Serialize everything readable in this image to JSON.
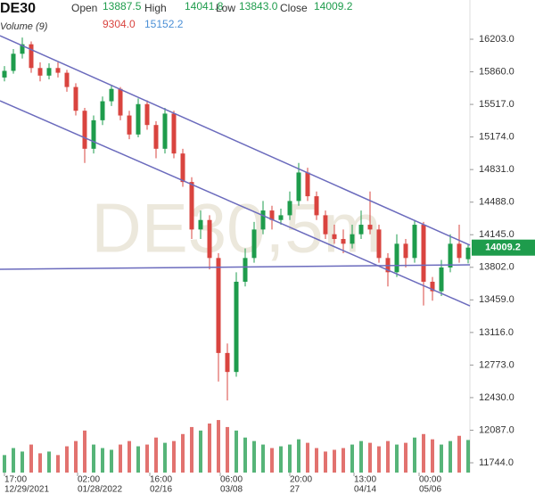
{
  "chart_data": {
    "type": "candlestick",
    "symbol": "DE30",
    "watermark": "DE30,5m",
    "stats": {
      "labels": [
        "Open",
        "High",
        "Low",
        "Close"
      ],
      "values": [
        13887.5,
        14041.8,
        13843,
        14009.2
      ],
      "value_labels": [
        "13887.5",
        "14041.8",
        "13843.0",
        "14009.2"
      ],
      "color": "#1e9c4c"
    },
    "volume_header": {
      "title": "Volume (9)",
      "values": [
        9304,
        15152.2
      ],
      "value_labels": [
        "9304.0",
        "15152.2"
      ],
      "colors": [
        "#d9443f",
        "#4b8fd6"
      ]
    },
    "up_color": "#1e9c4c",
    "down_color": "#d9443f",
    "xlim": [
      -0.5,
      52.2
    ],
    "xticks": [
      {
        "value": 0,
        "label": "17:00"
      },
      {
        "value": 8.2,
        "label": "02:00"
      },
      {
        "value": 16.3,
        "label": "16:00"
      },
      {
        "value": 24.2,
        "label": "06:00"
      },
      {
        "value": 32,
        "label": "20:00"
      },
      {
        "value": 39.2,
        "label": "13:00"
      },
      {
        "value": 46.5,
        "label": "00:00"
      }
    ],
    "xtick_dates": [
      "12/29/2021",
      "01/28/2022",
      "02/16",
      "03/08",
      "27",
      "04/14",
      "05/06"
    ],
    "ylim": [
      11594,
      16616
    ],
    "yticks": [
      {
        "value": 16203,
        "label": "16203.0"
      },
      {
        "value": 15860,
        "label": "15860.0"
      },
      {
        "value": 15517,
        "label": "15517.0"
      },
      {
        "value": 15174,
        "label": "15174.0"
      },
      {
        "value": 14831,
        "label": "14831.0"
      },
      {
        "value": 14488,
        "label": "14488.0"
      },
      {
        "value": 14145,
        "label": "14145.0"
      },
      {
        "value": 13802,
        "label": "13802.0"
      },
      {
        "value": 13459,
        "label": "13459.0"
      },
      {
        "value": 13116,
        "label": "13116.0"
      },
      {
        "value": 12773,
        "label": "12773.0"
      },
      {
        "value": 12430,
        "label": "12430.0"
      },
      {
        "value": 12087,
        "label": "12087.0"
      },
      {
        "value": 11744,
        "label": "11744.0"
      }
    ],
    "open": [
      15800,
      15870,
      16050,
      16150,
      15900,
      15820,
      15900,
      15850,
      15700,
      15450,
      15050,
      15350,
      15550,
      15680,
      15400,
      15200,
      15520,
      15300,
      15050,
      15420,
      15000,
      14700,
      14200,
      14300,
      13900,
      12900,
      12700,
      13650,
      13900,
      14200,
      14400,
      14300,
      14350,
      14500,
      14800,
      14550,
      14350,
      14150,
      14100,
      14050,
      14150,
      14250,
      14200,
      13900,
      13750,
      14050,
      13900,
      14250,
      13650,
      13550,
      13800,
      14050,
      13887.5
    ],
    "high": [
      15920,
      16100,
      16220,
      16180,
      15960,
      15950,
      15960,
      15880,
      15740,
      15480,
      15400,
      15600,
      15720,
      15700,
      15450,
      15580,
      15560,
      15340,
      15480,
      15450,
      15050,
      14750,
      14400,
      14350,
      13950,
      13000,
      13750,
      14000,
      14280,
      14500,
      14450,
      14420,
      14600,
      14900,
      14850,
      14600,
      14400,
      14250,
      14200,
      14250,
      14400,
      14600,
      14250,
      13950,
      14150,
      14100,
      14300,
      14280,
      13700,
      13880,
      14150,
      14250,
      14041.8
    ],
    "low": [
      15760,
      15840,
      16000,
      15850,
      15760,
      15780,
      15800,
      15650,
      15400,
      14900,
      15000,
      15300,
      15500,
      15350,
      15150,
      15170,
      15250,
      14950,
      15000,
      14950,
      14650,
      14100,
      14100,
      13780,
      12600,
      12400,
      12650,
      13600,
      13850,
      14150,
      14200,
      14250,
      14300,
      14450,
      14500,
      14300,
      14100,
      14050,
      13950,
      14000,
      14100,
      14150,
      13850,
      13600,
      13700,
      13800,
      13850,
      13400,
      13450,
      13500,
      13750,
      13850,
      13843
    ],
    "close": [
      15870,
      16050,
      16150,
      15900,
      15820,
      15900,
      15850,
      15700,
      15450,
      15050,
      15350,
      15550,
      15680,
      15400,
      15200,
      15520,
      15300,
      15050,
      15420,
      15000,
      14700,
      14200,
      14300,
      13900,
      12900,
      12700,
      13650,
      13900,
      14200,
      14400,
      14300,
      14350,
      14500,
      14800,
      14550,
      14350,
      14150,
      14100,
      14050,
      14150,
      14250,
      14200,
      13900,
      13750,
      14050,
      13900,
      14250,
      13650,
      13550,
      13800,
      14050,
      13900,
      14009.2
    ],
    "volume": [
      5000,
      7000,
      6000,
      8000,
      5500,
      6000,
      5000,
      7500,
      9000,
      12000,
      8000,
      7000,
      6500,
      8000,
      9000,
      7500,
      8000,
      10000,
      8500,
      9000,
      11000,
      13000,
      12000,
      14000,
      15000,
      13000,
      12000,
      10000,
      9000,
      8000,
      7000,
      7500,
      8000,
      9500,
      8500,
      7000,
      6000,
      6500,
      7000,
      8000,
      9000,
      8500,
      7500,
      9000,
      8000,
      8500,
      10000,
      11000,
      9500,
      8000,
      9000,
      10500,
      9304
    ],
    "volume_ylim": [
      0,
      28000
    ],
    "trendline_color": "#6b6bbd",
    "trendlines": [
      {
        "values": [
          16240,
          14035
        ]
      },
      {
        "values": [
          15555,
          13396
        ]
      },
      {
        "values": [
          13781,
          13828
        ]
      }
    ]
  }
}
